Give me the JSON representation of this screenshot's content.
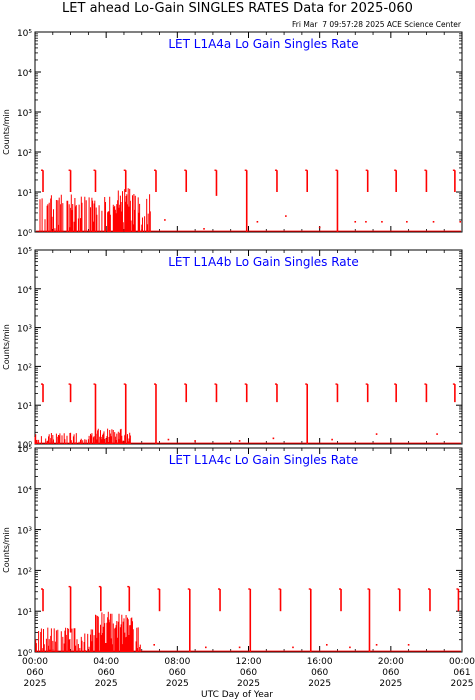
{
  "header": {
    "title": "LET ahead Lo-Gain SINGLES RATES Data for 2025-060",
    "timestamp": "Fri Mar  7 09:57:28 2025 ACE Science Center"
  },
  "xaxis": {
    "label": "UTC Day of Year",
    "ticks": [
      {
        "time": "00:00",
        "day": "060",
        "year": "2025"
      },
      {
        "time": "04:00",
        "day": "060",
        "year": "2025"
      },
      {
        "time": "08:00",
        "day": "060",
        "year": "2025"
      },
      {
        "time": "12:00",
        "day": "060",
        "year": "2025"
      },
      {
        "time": "16:00",
        "day": "060",
        "year": "2025"
      },
      {
        "time": "20:00",
        "day": "060",
        "year": "2025"
      },
      {
        "time": "00:00",
        "day": "061",
        "year": "2025"
      }
    ]
  },
  "colors": {
    "trace": "#ff0000",
    "panel_title": "#0000ff"
  },
  "chart_data": [
    {
      "type": "line",
      "title": "LET L1A4a Lo Gain Singles Rate",
      "ylabel": "Counts/min",
      "yscale": "log",
      "ylim": [
        1,
        100000
      ],
      "xlim_hours": [
        0,
        24
      ],
      "ytick_labels": [
        "10⁰",
        "10¹",
        "10²",
        "10³",
        "10⁴",
        "10⁵"
      ],
      "spikes": [
        {
          "t": 0.45,
          "low": 10,
          "high": 35
        },
        {
          "t": 2.0,
          "low": 10,
          "high": 35
        },
        {
          "t": 3.4,
          "low": 10,
          "high": 35
        },
        {
          "t": 5.1,
          "low": 10,
          "high": 35
        },
        {
          "t": 6.8,
          "low": 10,
          "high": 35
        },
        {
          "t": 8.5,
          "low": 10,
          "high": 35
        },
        {
          "t": 10.2,
          "low": 8,
          "high": 35
        },
        {
          "t": 11.9,
          "low": 1,
          "high": 35
        },
        {
          "t": 13.6,
          "low": 10,
          "high": 35
        },
        {
          "t": 15.3,
          "low": 10,
          "high": 35
        },
        {
          "t": 17.0,
          "low": 1,
          "high": 35
        },
        {
          "t": 18.7,
          "low": 10,
          "high": 35
        },
        {
          "t": 20.3,
          "low": 10,
          "high": 35
        },
        {
          "t": 22.0,
          "low": 10,
          "high": 35
        },
        {
          "t": 23.6,
          "low": 10,
          "high": 35
        }
      ],
      "noise": {
        "start": 0,
        "end": 6.6,
        "low": 1,
        "high": 9,
        "dense_start": 4.4,
        "dense_end": 5.4,
        "dense_high": 13
      },
      "points": [
        {
          "t": 7.3,
          "v": 2
        },
        {
          "t": 9.5,
          "v": 1.2
        },
        {
          "t": 12.5,
          "v": 1.8
        },
        {
          "t": 14.1,
          "v": 2.5
        },
        {
          "t": 16.0,
          "v": 1.3
        },
        {
          "t": 18.0,
          "v": 1.8
        },
        {
          "t": 18.6,
          "v": 1.8
        },
        {
          "t": 19.5,
          "v": 1.8
        },
        {
          "t": 20.9,
          "v": 1.8
        },
        {
          "t": 22.4,
          "v": 1.8
        },
        {
          "t": 23.9,
          "v": 1.8
        }
      ]
    },
    {
      "type": "line",
      "title": "LET L1A4b Lo Gain Singles Rate",
      "ylabel": "Counts/min",
      "yscale": "log",
      "ylim": [
        1,
        100000
      ],
      "xlim_hours": [
        0,
        24
      ],
      "ytick_labels": [
        "10⁰",
        "10¹",
        "10²",
        "10³",
        "10⁴",
        "10⁵"
      ],
      "spikes": [
        {
          "t": 0.45,
          "low": 12,
          "high": 35
        },
        {
          "t": 2.0,
          "low": 12,
          "high": 35
        },
        {
          "t": 3.4,
          "low": 1,
          "high": 35
        },
        {
          "t": 5.1,
          "low": 1,
          "high": 35
        },
        {
          "t": 6.8,
          "low": 1,
          "high": 35
        },
        {
          "t": 8.5,
          "low": 12,
          "high": 35
        },
        {
          "t": 10.2,
          "low": 12,
          "high": 35
        },
        {
          "t": 11.9,
          "low": 12,
          "high": 35
        },
        {
          "t": 13.6,
          "low": 12,
          "high": 35
        },
        {
          "t": 15.3,
          "low": 1,
          "high": 35
        },
        {
          "t": 17.0,
          "low": 12,
          "high": 35
        },
        {
          "t": 18.7,
          "low": 12,
          "high": 35
        },
        {
          "t": 20.3,
          "low": 12,
          "high": 35
        },
        {
          "t": 22.0,
          "low": 12,
          "high": 35
        },
        {
          "t": 23.6,
          "low": 12,
          "high": 35
        }
      ],
      "noise": {
        "start": 0,
        "end": 5.4,
        "low": 1,
        "high": 2,
        "dense_start": 3.4,
        "dense_end": 5.2,
        "dense_high": 2.5
      },
      "points": [
        {
          "t": 7.5,
          "v": 1.3
        },
        {
          "t": 9.0,
          "v": 1.2
        },
        {
          "t": 11.5,
          "v": 1.2
        },
        {
          "t": 13.4,
          "v": 1.4
        },
        {
          "t": 16.7,
          "v": 1.3
        },
        {
          "t": 19.2,
          "v": 1.8
        },
        {
          "t": 22.6,
          "v": 1.8
        }
      ]
    },
    {
      "type": "line",
      "title": "LET L1A4c Lo Gain Singles Rate",
      "ylabel": "Counts/min",
      "yscale": "log",
      "ylim": [
        1,
        100000
      ],
      "xlim_hours": [
        0,
        24
      ],
      "ytick_labels": [
        "10⁰",
        "10¹",
        "10²",
        "10³",
        "10⁴",
        "10⁵"
      ],
      "spikes": [
        {
          "t": 0.45,
          "low": 10,
          "high": 35
        },
        {
          "t": 2.0,
          "low": 3,
          "high": 40
        },
        {
          "t": 3.7,
          "low": 10,
          "high": 40
        },
        {
          "t": 5.3,
          "low": 10,
          "high": 40
        },
        {
          "t": 7.0,
          "low": 10,
          "high": 35
        },
        {
          "t": 8.7,
          "low": 1,
          "high": 35
        },
        {
          "t": 10.4,
          "low": 10,
          "high": 35
        },
        {
          "t": 12.1,
          "low": 1,
          "high": 35
        },
        {
          "t": 13.8,
          "low": 10,
          "high": 35
        },
        {
          "t": 15.5,
          "low": 1,
          "high": 35
        },
        {
          "t": 17.2,
          "low": 10,
          "high": 35
        },
        {
          "t": 18.8,
          "low": 1,
          "high": 35
        },
        {
          "t": 20.5,
          "low": 10,
          "high": 35
        },
        {
          "t": 22.2,
          "low": 10,
          "high": 35
        },
        {
          "t": 23.8,
          "low": 10,
          "high": 35
        }
      ],
      "noise": {
        "start": 0,
        "end": 6.0,
        "low": 1,
        "high": 4,
        "dense_start": 3.4,
        "dense_end": 5.5,
        "dense_high": 10
      },
      "points": [
        {
          "t": 6.7,
          "v": 1.5
        },
        {
          "t": 9.6,
          "v": 1.3
        },
        {
          "t": 11.5,
          "v": 1.3
        },
        {
          "t": 14.5,
          "v": 1.3
        },
        {
          "t": 16.4,
          "v": 1.5
        },
        {
          "t": 17.7,
          "v": 1.3
        },
        {
          "t": 19.2,
          "v": 1.5
        },
        {
          "t": 21.0,
          "v": 1.5
        }
      ]
    }
  ]
}
